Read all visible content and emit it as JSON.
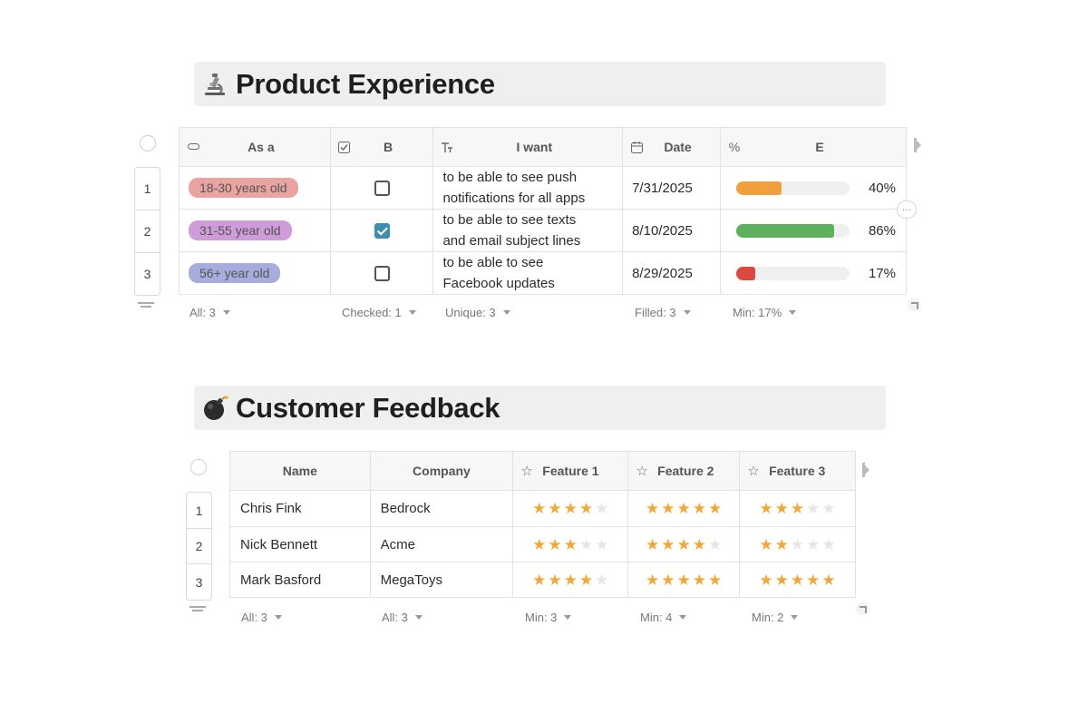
{
  "product_experience": {
    "title": "Product Experience",
    "emoji_icon": "microscope-icon",
    "columns": [
      {
        "label": "As a",
        "icon": "single-select-icon"
      },
      {
        "label": "B",
        "icon": "checkbox-icon"
      },
      {
        "label": "I want",
        "icon": "text-icon"
      },
      {
        "label": "Date",
        "icon": "calendar-icon"
      },
      {
        "label": "E",
        "icon": "percent-icon"
      }
    ],
    "rows": [
      {
        "num": "1",
        "as_a": "18-30 years old",
        "tag_color": "#e9a3a0",
        "checked": false,
        "want_1": "to be able to see push",
        "want_2": "notifications for all apps",
        "date": "7/31/2025",
        "percent": 40,
        "percent_label": "40%",
        "bar_color": "#f2a03d"
      },
      {
        "num": "2",
        "as_a": "31-55 year old",
        "tag_color": "#cf9bd9",
        "checked": true,
        "want_1": "to be able to see texts",
        "want_2": "and email subject lines",
        "date": "8/10/2025",
        "percent": 86,
        "percent_label": "86%",
        "bar_color": "#5fb05c"
      },
      {
        "num": "3",
        "as_a": "56+ year old",
        "tag_color": "#a6acdb",
        "checked": false,
        "want_1": "to be able to see",
        "want_2": "Facebook updates",
        "date": "8/29/2025",
        "percent": 17,
        "percent_label": "17%",
        "bar_color": "#dc4a3d"
      }
    ],
    "footer": {
      "all": "All: 3",
      "checked": "Checked: 1",
      "unique": "Unique: 3",
      "filled": "Filled: 3",
      "min": "Min: 17%"
    },
    "more_button": "···"
  },
  "customer_feedback": {
    "title": "Customer Feedback",
    "emoji_icon": "bomb-icon",
    "columns": [
      {
        "label": "Name"
      },
      {
        "label": "Company"
      },
      {
        "label": "Feature 1",
        "icon": "star-outline-icon"
      },
      {
        "label": "Feature 2",
        "icon": "star-outline-icon"
      },
      {
        "label": "Feature 3",
        "icon": "star-outline-icon"
      }
    ],
    "rows": [
      {
        "num": "1",
        "name": "Chris Fink",
        "company": "Bedrock",
        "f1": 4,
        "f2": 5,
        "f3": 3
      },
      {
        "num": "2",
        "name": "Nick Bennett",
        "company": "Acme",
        "f1": 3,
        "f2": 4,
        "f3": 2
      },
      {
        "num": "3",
        "name": "Mark Basford",
        "company": "MegaToys",
        "f1": 4,
        "f2": 5,
        "f3": 5
      }
    ],
    "footer": {
      "name_all": "All: 3",
      "company_all": "All: 3",
      "f1_min": "Min: 3",
      "f2_min": "Min: 4",
      "f3_min": "Min: 2"
    },
    "star_max": 5
  },
  "colors": {
    "star_on": "#f0a83a",
    "star_off": "#e6e6e6",
    "checkbox_on": "#3d8eae",
    "heading_bg": "#efefef"
  }
}
